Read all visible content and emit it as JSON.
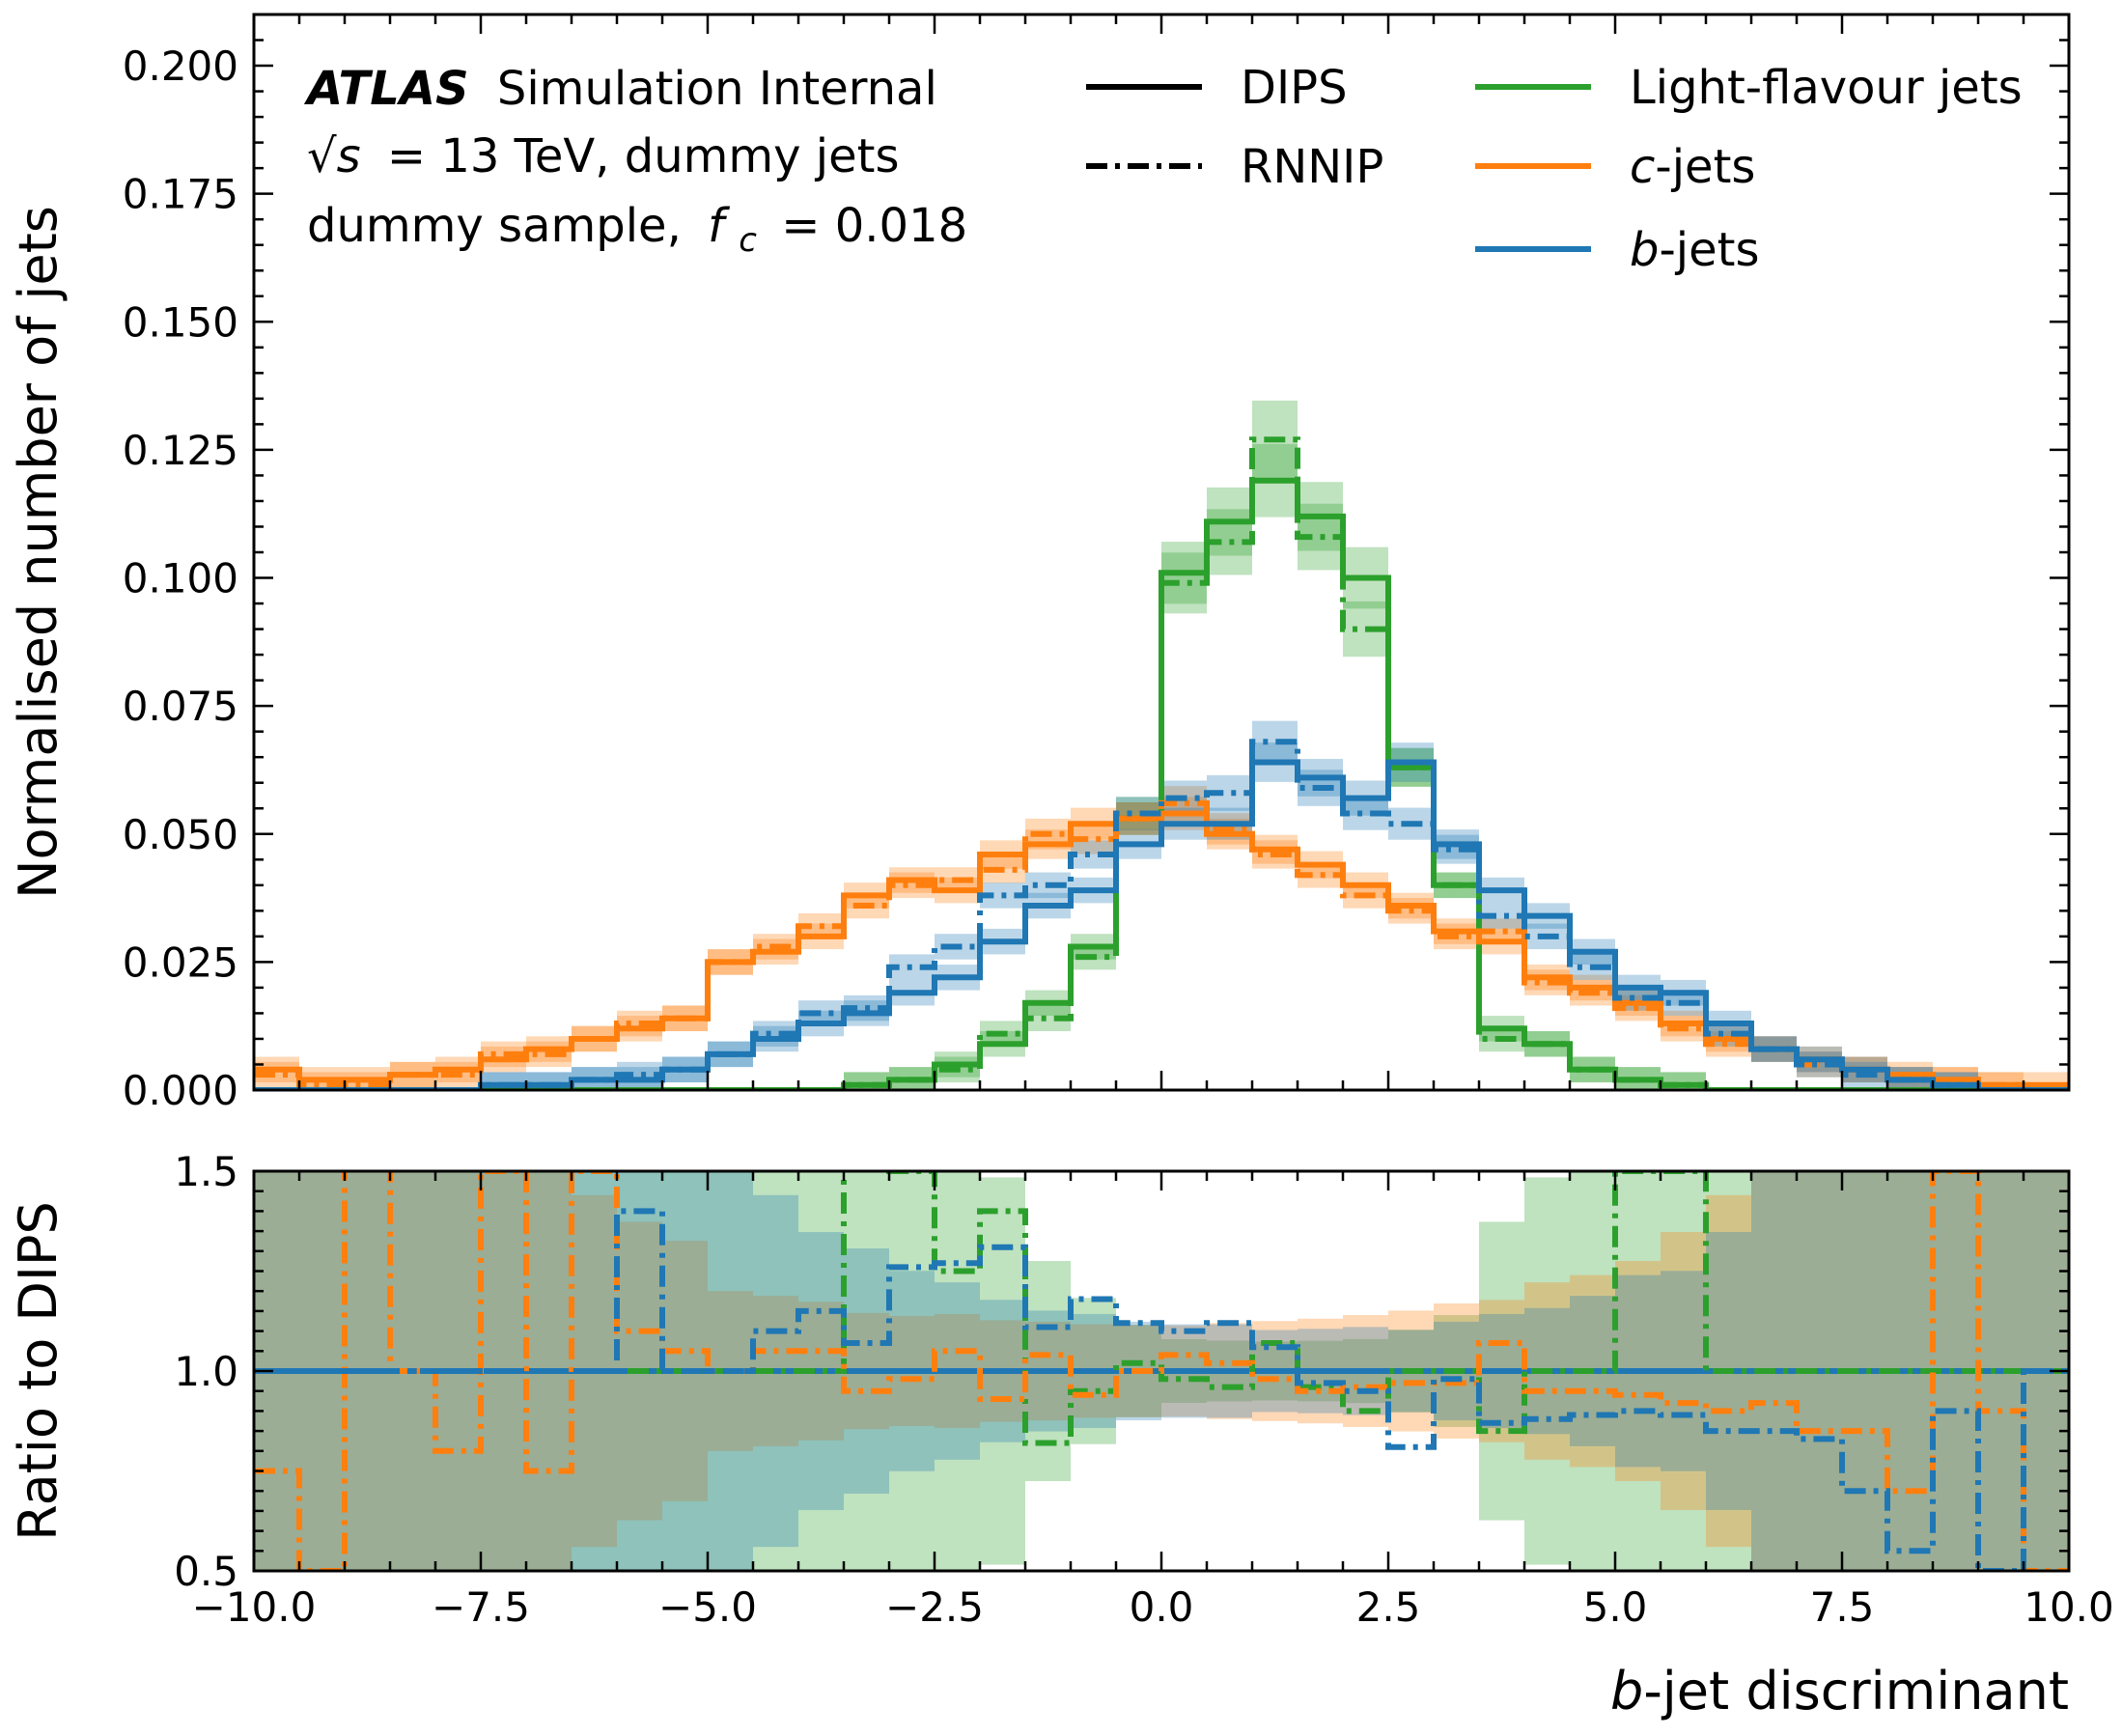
{
  "colors": {
    "light": "#2ca02c",
    "c": "#ff7f0e",
    "b": "#1f77b4",
    "axis": "#000000"
  },
  "atlas": {
    "bold": "ATLAS",
    "rest": "Simulation Internal",
    "line2_sqrt": "√s",
    "line2_rest": "= 13 TeV, dummy jets",
    "line3_prefix": "dummy sample,",
    "line3_f": "f",
    "line3_sub": "c",
    "line3_value": "= 0.018"
  },
  "legend": {
    "styles": [
      {
        "label": "DIPS",
        "dash": "solid"
      },
      {
        "label": "RNNIP",
        "dash": "dashdot"
      }
    ],
    "flavours": [
      {
        "key": "light",
        "italic": "",
        "label": "Light-flavour jets"
      },
      {
        "key": "c",
        "italic": "c",
        "label": "-jets"
      },
      {
        "key": "b",
        "italic": "b",
        "label": "-jets"
      }
    ]
  },
  "chart_data": [
    {
      "type": "line",
      "subtype": "step-histogram",
      "ylabel": "Normalised number of jets",
      "ylim": [
        0,
        0.21
      ],
      "xlim": [
        -10,
        10
      ],
      "yticks": [
        "0.000",
        "0.025",
        "0.050",
        "0.075",
        "0.100",
        "0.125",
        "0.150",
        "0.175",
        "0.200"
      ],
      "bin_edges": [
        -10,
        -9.5,
        -9,
        -8.5,
        -8,
        -7.5,
        -7,
        -6.5,
        -6,
        -5.5,
        -5,
        -4.5,
        -4,
        -3.5,
        -3,
        -2.5,
        -2,
        -1.5,
        -1,
        -0.5,
        0,
        0.5,
        1,
        1.5,
        2,
        2.5,
        3,
        3.5,
        4,
        4.5,
        5,
        5.5,
        6,
        6.5,
        7,
        7.5,
        8,
        8.5,
        9,
        9.5,
        10
      ],
      "series": [
        {
          "flavour": "light",
          "tagger": "DIPS",
          "values": [
            0,
            0,
            0,
            0,
            0,
            0,
            0,
            0,
            0,
            0,
            0,
            0,
            0,
            0.001,
            0.002,
            0.005,
            0.009,
            0.017,
            0.028,
            0.053,
            0.101,
            0.111,
            0.119,
            0.112,
            0.1,
            0.063,
            0.04,
            0.012,
            0.009,
            0.004,
            0.002,
            0.001,
            0,
            0,
            0,
            0,
            0,
            0,
            0,
            0
          ]
        },
        {
          "flavour": "light",
          "tagger": "RNNIP",
          "values": [
            0,
            0,
            0,
            0,
            0,
            0,
            0,
            0,
            0,
            0,
            0,
            0,
            0,
            0.001,
            0.002,
            0.004,
            0.011,
            0.014,
            0.026,
            0.054,
            0.099,
            0.107,
            0.127,
            0.108,
            0.09,
            0.063,
            0.04,
            0.01,
            0.009,
            0.004,
            0.002,
            0.001,
            0,
            0,
            0,
            0,
            0,
            0,
            0,
            0
          ]
        },
        {
          "flavour": "c",
          "tagger": "DIPS",
          "values": [
            0.004,
            0.002,
            0.002,
            0.003,
            0.004,
            0.006,
            0.008,
            0.01,
            0.012,
            0.014,
            0.025,
            0.027,
            0.03,
            0.038,
            0.041,
            0.039,
            0.046,
            0.048,
            0.052,
            0.053,
            0.054,
            0.05,
            0.047,
            0.044,
            0.04,
            0.036,
            0.031,
            0.029,
            0.022,
            0.02,
            0.017,
            0.013,
            0.01,
            0.008,
            0.006,
            0.004,
            0.003,
            0.002,
            0.001,
            0.001
          ]
        },
        {
          "flavour": "c",
          "tagger": "RNNIP",
          "values": [
            0.003,
            0.001,
            0.001,
            0.003,
            0.003,
            0.007,
            0.007,
            0.01,
            0.013,
            0.014,
            0.025,
            0.028,
            0.032,
            0.036,
            0.04,
            0.041,
            0.043,
            0.05,
            0.049,
            0.053,
            0.056,
            0.051,
            0.046,
            0.042,
            0.038,
            0.035,
            0.03,
            0.031,
            0.021,
            0.019,
            0.016,
            0.012,
            0.009,
            0.008,
            0.005,
            0.004,
            0.002,
            0.002,
            0.001,
            0
          ]
        },
        {
          "flavour": "b",
          "tagger": "DIPS",
          "values": [
            0,
            0,
            0,
            0,
            0,
            0.001,
            0.001,
            0.002,
            0.002,
            0.004,
            0.007,
            0.01,
            0.013,
            0.015,
            0.019,
            0.022,
            0.029,
            0.036,
            0.039,
            0.048,
            0.052,
            0.052,
            0.064,
            0.061,
            0.057,
            0.064,
            0.048,
            0.039,
            0.034,
            0.027,
            0.02,
            0.019,
            0.013,
            0.008,
            0.006,
            0.004,
            0.002,
            0.001,
            0,
            0
          ]
        },
        {
          "flavour": "b",
          "tagger": "RNNIP",
          "values": [
            0,
            0,
            0,
            0,
            0,
            0.001,
            0.001,
            0.002,
            0.003,
            0.004,
            0.007,
            0.011,
            0.015,
            0.016,
            0.024,
            0.028,
            0.038,
            0.04,
            0.046,
            0.054,
            0.057,
            0.058,
            0.068,
            0.059,
            0.054,
            0.052,
            0.047,
            0.034,
            0.03,
            0.024,
            0.018,
            0.017,
            0.011,
            0.008,
            0.005,
            0.003,
            0.002,
            0.001,
            0,
            0
          ]
        }
      ]
    },
    {
      "type": "line",
      "subtype": "ratio-step-histogram",
      "ylabel": "Ratio to DIPS",
      "xlabel_italic": "b",
      "xlabel": "-jet discriminant",
      "ylim": [
        0.5,
        1.5
      ],
      "xlim": [
        -10,
        10
      ],
      "yticks": [
        "0.5",
        "1.0",
        "1.5"
      ],
      "xticks": [
        "−10.0",
        "−7.5",
        "−5.0",
        "−2.5",
        "0.0",
        "2.5",
        "5.0",
        "7.5",
        "10.0"
      ],
      "reference_value": 1.0,
      "series": [
        {
          "flavour": "light",
          "tagger": "RNNIP",
          "values": [
            1,
            1,
            1,
            1,
            1,
            1,
            1,
            1,
            1,
            1,
            1,
            1,
            1,
            1.8,
            1.5,
            1.25,
            1.4,
            0.82,
            0.95,
            1.02,
            0.98,
            0.96,
            1.07,
            0.96,
            0.9,
            1,
            1,
            0.85,
            1,
            1,
            1.5,
            1.5,
            1,
            1,
            1,
            1,
            1,
            1,
            1,
            1
          ]
        },
        {
          "flavour": "c",
          "tagger": "RNNIP",
          "values": [
            0.75,
            0.5,
            1.6,
            1,
            0.8,
            1.5,
            0.75,
            1.5,
            1.1,
            1.05,
            1.0,
            1.05,
            1.05,
            0.95,
            0.98,
            1.05,
            0.93,
            1.04,
            0.94,
            1.0,
            1.04,
            1.02,
            0.98,
            0.95,
            0.96,
            0.97,
            0.97,
            1.07,
            0.95,
            0.95,
            0.94,
            0.92,
            0.9,
            0.92,
            0.85,
            0.85,
            0.7,
            1.5,
            0.9,
            0.5
          ]
        },
        {
          "flavour": "b",
          "tagger": "RNNIP",
          "values": [
            1,
            1,
            1,
            1,
            1,
            1,
            1,
            1,
            1.4,
            1.0,
            1.0,
            1.1,
            1.15,
            1.07,
            1.26,
            1.27,
            1.31,
            1.11,
            1.18,
            1.12,
            1.1,
            1.12,
            1.06,
            0.97,
            0.95,
            0.81,
            0.98,
            0.87,
            0.88,
            0.89,
            0.9,
            0.89,
            0.85,
            0.85,
            0.83,
            0.7,
            0.55,
            0.9,
            0.5,
            1
          ]
        }
      ]
    }
  ]
}
